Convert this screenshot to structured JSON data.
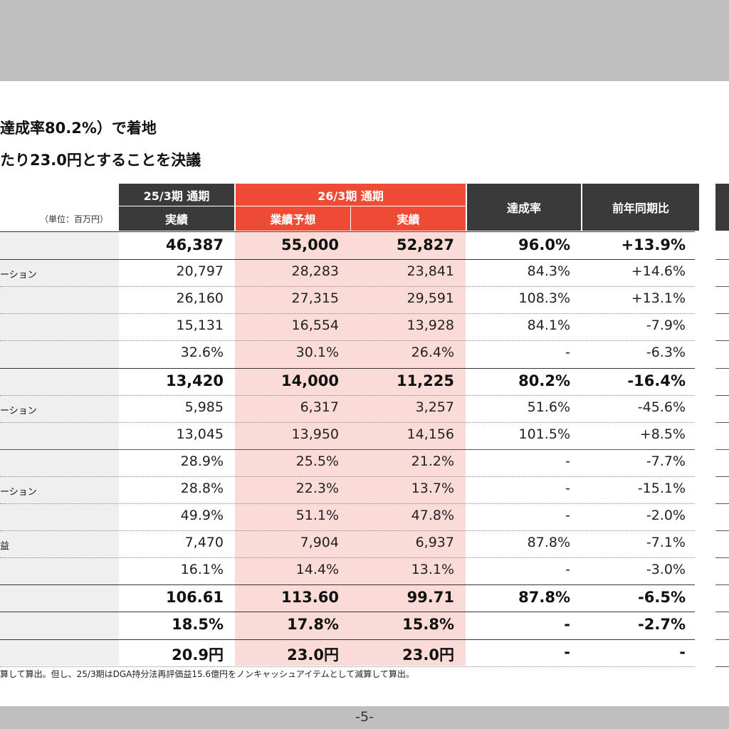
{
  "header": {
    "line1": "達成率80.2%）で着地",
    "line2": "たり23.0円とすることを決議"
  },
  "table": {
    "unit_label": "（単位：百万円）",
    "col_prev_period": "25/3期 通期",
    "col_prev_actual": "実績",
    "col_cur_period": "26/3期 通期",
    "col_cur_forecast": "業績予想",
    "col_cur_actual": "実績",
    "col_achievement": "達成率",
    "col_yoy": "前年同期比",
    "rows": [
      {
        "label": "",
        "prev": "46,387",
        "forecast": "55,000",
        "actual": "52,827",
        "rate": "96.0%",
        "yoy": "+13.9%"
      },
      {
        "label": "ーション",
        "prev": "20,797",
        "forecast": "28,283",
        "actual": "23,841",
        "rate": "84.3%",
        "yoy": "+14.6%"
      },
      {
        "label": "",
        "prev": "26,160",
        "forecast": "27,315",
        "actual": "29,591",
        "rate": "108.3%",
        "yoy": "+13.1%"
      },
      {
        "label": "",
        "prev": "15,131",
        "forecast": "16,554",
        "actual": "13,928",
        "rate": "84.1%",
        "yoy": "-7.9%"
      },
      {
        "label": "",
        "prev": "32.6%",
        "forecast": "30.1%",
        "actual": "26.4%",
        "rate": "-",
        "yoy": "-6.3%"
      },
      {
        "label": "",
        "prev": "13,420",
        "forecast": "14,000",
        "actual": "11,225",
        "rate": "80.2%",
        "yoy": "-16.4%"
      },
      {
        "label": "ーション",
        "prev": "5,985",
        "forecast": "6,317",
        "actual": "3,257",
        "rate": "51.6%",
        "yoy": "-45.6%"
      },
      {
        "label": "",
        "prev": "13,045",
        "forecast": "13,950",
        "actual": "14,156",
        "rate": "101.5%",
        "yoy": "+8.5%"
      },
      {
        "label": "",
        "prev": "28.9%",
        "forecast": "25.5%",
        "actual": "21.2%",
        "rate": "-",
        "yoy": "-7.7%"
      },
      {
        "label": "ーション",
        "prev": "28.8%",
        "forecast": "22.3%",
        "actual": "13.7%",
        "rate": "-",
        "yoy": "-15.1%"
      },
      {
        "label": "",
        "prev": "49.9%",
        "forecast": "51.1%",
        "actual": "47.8%",
        "rate": "-",
        "yoy": "-2.0%"
      },
      {
        "label": "益",
        "prev": "7,470",
        "forecast": "7,904",
        "actual": "6,937",
        "rate": "87.8%",
        "yoy": "-7.1%"
      },
      {
        "label": "",
        "prev": "16.1%",
        "forecast": "14.4%",
        "actual": "13.1%",
        "rate": "-",
        "yoy": "-3.0%"
      },
      {
        "label": "",
        "prev": "106.61",
        "forecast": "113.60",
        "actual": "99.71",
        "rate": "87.8%",
        "yoy": "-6.5%"
      },
      {
        "label": "",
        "prev": "18.5%",
        "forecast": "17.8%",
        "actual": "15.8%",
        "rate": "-",
        "yoy": "-2.7%"
      },
      {
        "label": "",
        "prev": "20.9円",
        "forecast": "23.0円",
        "actual": "23.0円",
        "rate": "-",
        "yoy": "-"
      }
    ]
  },
  "footnote": "算して算出。但し、25/3期はDGA持分法再評価益15.6億円をノンキャッシュアイテムとして減算して算出。",
  "page_number": "-5-"
}
